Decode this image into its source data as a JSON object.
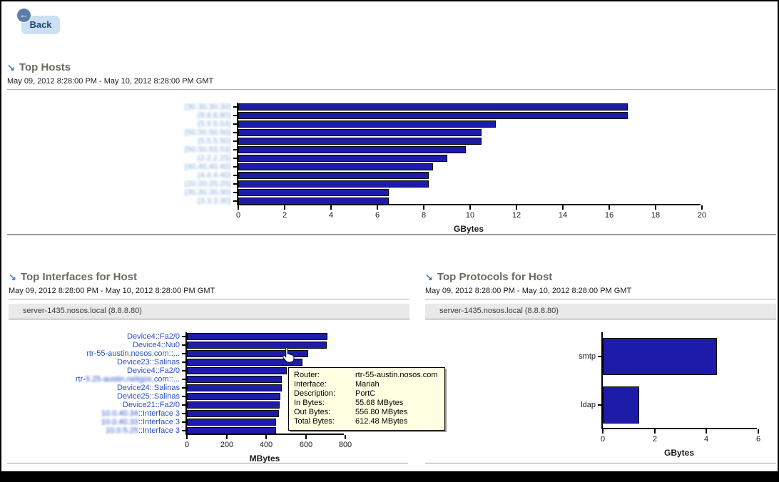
{
  "back_button": {
    "label": "Back"
  },
  "sections": {
    "top_hosts": {
      "title": "Top Hosts",
      "date_range": "May 09, 2012 8:28:00 PM - May 10, 2012 8:28:00 PM GMT"
    },
    "top_interfaces": {
      "title": "Top Interfaces for Host",
      "date_range": "May 09, 2012 8:28:00 PM - May 10, 2012 8:28:00 PM GMT",
      "host_selector": "server-1435.nosos.local (8.8.8.80)"
    },
    "top_protocols": {
      "title": "Top Protocols for Host",
      "date_range": "May 09, 2012 8:28:00 PM - May 10, 2012 8:28:00 PM GMT",
      "host_selector": "server-1435.nosos.local (8.8.8.80)"
    }
  },
  "tooltip": {
    "rows": [
      {
        "label": "Router:",
        "value": "rtr-55-austin.nosos.com"
      },
      {
        "label": "Interface:",
        "value": "Mariah"
      },
      {
        "label": "Description:",
        "value": "PortC"
      },
      {
        "label": "In Bytes:",
        "value": "55.68 MBytes"
      },
      {
        "label": "Out Bytes:",
        "value": "556.80 MBytes"
      },
      {
        "label": "Total Bytes:",
        "value": "612.48 MBytes"
      }
    ]
  },
  "colors": {
    "bar_fill": "#1c1ca8",
    "link_blue": "#2b50c8",
    "redacted_label_blue": "#7fa9da",
    "section_accent_blue": "#4a7ebb",
    "tooltip_bg": "#ffffe1",
    "back_button_bg": "#cddff2",
    "back_badge_bg": "#5b7ea8"
  },
  "chart_data": [
    {
      "id": "top_hosts",
      "type": "bar",
      "orientation": "horizontal",
      "title": "Top Hosts",
      "xlabel": "GBytes",
      "xlim": [
        0,
        20
      ],
      "xticks": [
        0,
        2,
        4,
        6,
        8,
        10,
        12,
        14,
        16,
        18,
        20
      ],
      "grid": false,
      "categories": [
        {
          "parts": [
            {
              "text": "(30.30.30.30)",
              "blur": true
            }
          ]
        },
        {
          "parts": [
            {
              "text": "(8.8.8.80)",
              "blur": true
            }
          ]
        },
        {
          "parts": [
            {
              "text": "(5.5.5.53)",
              "blur": true
            }
          ]
        },
        {
          "parts": [
            {
              "text": "(50.50.50.50)",
              "blur": true
            }
          ]
        },
        {
          "parts": [
            {
              "text": "(5.5.5.50)",
              "blur": true
            }
          ]
        },
        {
          "parts": [
            {
              "text": "(50.50.53.53)",
              "blur": true
            }
          ]
        },
        {
          "parts": [
            {
              "text": "(2.2.2.25)",
              "blur": true
            }
          ]
        },
        {
          "parts": [
            {
              "text": "(40.40.40.40)",
              "blur": true
            }
          ]
        },
        {
          "parts": [
            {
              "text": "(4.4.4.40)",
              "blur": true
            }
          ]
        },
        {
          "parts": [
            {
              "text": "(20.20.25.25)",
              "blur": true
            }
          ]
        },
        {
          "parts": [
            {
              "text": "(30.30.30.30)",
              "blur": true
            }
          ]
        },
        {
          "parts": [
            {
              "text": "(3.3.3.30)",
              "blur": true
            }
          ]
        }
      ],
      "values": [
        16.8,
        16.8,
        11.1,
        10.5,
        10.5,
        9.8,
        9.0,
        8.4,
        8.2,
        8.2,
        6.5,
        6.5
      ]
    },
    {
      "id": "top_interfaces",
      "type": "bar",
      "orientation": "horizontal",
      "title": "Top Interfaces for Host",
      "xlabel": "MBytes",
      "xlim": [
        0,
        800
      ],
      "xticks": [
        0,
        200,
        400,
        600,
        800
      ],
      "grid": false,
      "categories": [
        {
          "parts": [
            {
              "text": "Device4::Fa2/0",
              "blur": false
            }
          ]
        },
        {
          "parts": [
            {
              "text": "Device4::Nu0",
              "blur": false
            }
          ]
        },
        {
          "parts": [
            {
              "text": "rtr-55-austin.nosos.com::...",
              "blur": false
            }
          ]
        },
        {
          "parts": [
            {
              "text": "Device23::Salinas",
              "blur": false
            }
          ]
        },
        {
          "parts": [
            {
              "text": "Device4::Fa2/0",
              "blur": false
            }
          ]
        },
        {
          "parts": [
            {
              "text": "rtr-",
              "blur": false
            },
            {
              "text": "5.25-austin.netigos",
              "blur": true
            },
            {
              "text": ".com::...",
              "blur": false
            }
          ]
        },
        {
          "parts": [
            {
              "text": "Device24::Salinas",
              "blur": false
            }
          ]
        },
        {
          "parts": [
            {
              "text": "Device25::Salinas",
              "blur": false
            }
          ]
        },
        {
          "parts": [
            {
              "text": "Device21::Fa2/0",
              "blur": false
            }
          ]
        },
        {
          "parts": [
            {
              "text": "10.0.40.34",
              "blur": true
            },
            {
              "text": "::Interface 3",
              "blur": false
            }
          ]
        },
        {
          "parts": [
            {
              "text": "10.0.40.33",
              "blur": true
            },
            {
              "text": "::Interface 3",
              "blur": false
            }
          ]
        },
        {
          "parts": [
            {
              "text": "10.0.5.25",
              "blur": true
            },
            {
              "text": "::Interface 3",
              "blur": false
            }
          ]
        }
      ],
      "values": [
        710,
        707,
        612,
        585,
        505,
        478,
        478,
        472,
        468,
        465,
        452,
        450
      ]
    },
    {
      "id": "top_protocols",
      "type": "bar",
      "orientation": "horizontal",
      "title": "Top Protocols for Host",
      "xlabel": "GBytes",
      "xlim": [
        0,
        6
      ],
      "xticks": [
        0,
        2,
        4,
        6
      ],
      "grid": false,
      "categories": [
        {
          "parts": [
            {
              "text": "smtp",
              "blur": false
            }
          ]
        },
        {
          "parts": [
            {
              "text": "ldap",
              "blur": false
            }
          ]
        }
      ],
      "values": [
        4.4,
        1.4
      ]
    }
  ]
}
